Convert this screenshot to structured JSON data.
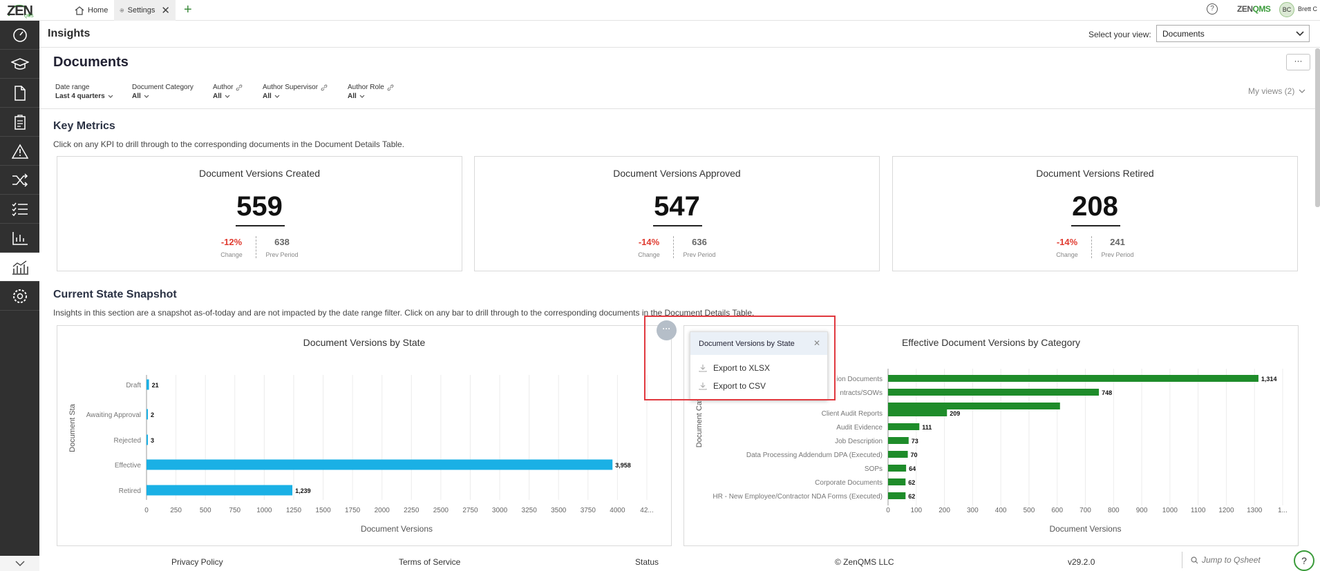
{
  "topbar": {
    "logo": "ZEN",
    "logo_sub": "QMS",
    "tabs": [
      {
        "label": "Home",
        "icon": "home-icon"
      },
      {
        "label": "Settings",
        "icon": "gear-icon",
        "close": "✕"
      }
    ],
    "add_tab": "+",
    "help": "?",
    "brand_zen": "ZEN",
    "brand_qms": "QMS",
    "avatar_initials": "BC",
    "user_name": "Brett C"
  },
  "sidebar": {
    "items": [
      "dashboard-icon",
      "training-icon",
      "document-icon",
      "clipboard-icon",
      "warning-icon",
      "shuffle-icon",
      "checklist-icon",
      "bar-chart-icon",
      "analytics-icon",
      "settings-icon"
    ],
    "active_index": 8
  },
  "header": {
    "title": "Insights",
    "view_label": "Select your view:",
    "view_value": "Documents"
  },
  "page": {
    "title": "Documents",
    "more": "···",
    "filters": [
      {
        "label": "Date range",
        "value": "Last 4 quarters",
        "link": false
      },
      {
        "label": "Document Category",
        "value": "All",
        "link": false
      },
      {
        "label": "Author",
        "value": "All",
        "link": true
      },
      {
        "label": "Author Supervisor",
        "value": "All",
        "link": true
      },
      {
        "label": "Author Role",
        "value": "All",
        "link": true
      }
    ],
    "my_views": "My views (2)"
  },
  "key_metrics": {
    "title": "Key Metrics",
    "subtitle": "Click on any KPI to drill through to the corresponding documents in the Document Details Table.",
    "change_label": "Change",
    "prev_label": "Prev Period",
    "kpis": [
      {
        "title": "Document Versions Created",
        "value": "559",
        "change": "-12%",
        "prev": "638"
      },
      {
        "title": "Document Versions Approved",
        "value": "547",
        "change": "-14%",
        "prev": "636"
      },
      {
        "title": "Document Versions Retired",
        "value": "208",
        "change": "-14%",
        "prev": "241"
      }
    ]
  },
  "snapshot": {
    "title": "Current State Snapshot",
    "subtitle": "Insights in this section are a snapshot as-of-today and are not impacted by the date range filter. Click on any bar to drill through to the corresponding documents in the Document Details Table."
  },
  "colors": {
    "state_bar": "#1ab0e5",
    "category_bar": "#1e8c2a",
    "negative": "#e03c31",
    "highlight": "#e0383e"
  },
  "chart_data": [
    {
      "type": "bar",
      "orientation": "horizontal",
      "title": "Document Versions by State",
      "xlabel": "Document Versions",
      "ylabel": "Document Sta",
      "categories": [
        "Draft",
        "Awaiting Approval",
        "Rejected",
        "Effective",
        "Retired"
      ],
      "values": [
        21,
        2,
        3,
        3958,
        1239
      ],
      "value_labels": [
        "21",
        "2",
        "3",
        "3,958",
        "1,239"
      ],
      "xticks": [
        "0",
        "250",
        "500",
        "750",
        "1000",
        "1250",
        "1500",
        "1750",
        "2000",
        "2250",
        "2500",
        "2750",
        "3000",
        "3250",
        "3500",
        "3750",
        "4000",
        "42..."
      ],
      "xlim": [
        0,
        4250
      ],
      "grid": true
    },
    {
      "type": "bar",
      "orientation": "horizontal",
      "title": "Effective Document Versions by Category",
      "xlabel": "Document Versions",
      "ylabel": "Document Categ",
      "categories": [
        "ion Documents",
        "ntracts/SOWs",
        "",
        "Client Audit Reports",
        "Audit Evidence",
        "Job Description",
        "Data Processing Addendum DPA (Executed)",
        "SOPs",
        "Corporate Documents",
        "HR - New Employee/Contractor NDA Forms (Executed)"
      ],
      "values": [
        1314,
        748,
        610,
        209,
        111,
        73,
        70,
        64,
        62,
        62
      ],
      "value_labels": [
        "1,314",
        "748",
        "",
        "209",
        "111",
        "73",
        "70",
        "64",
        "62",
        "62"
      ],
      "xticks": [
        "0",
        "100",
        "200",
        "300",
        "400",
        "500",
        "600",
        "700",
        "800",
        "900",
        "1000",
        "1100",
        "1200",
        "1300",
        "1..."
      ],
      "xlim": [
        0,
        1400
      ],
      "grid": true
    }
  ],
  "popup": {
    "trigger": "···",
    "title": "Document Versions by State",
    "close": "✕",
    "items": [
      "Export to XLSX",
      "Export to CSV"
    ]
  },
  "footer": {
    "privacy": "Privacy Policy",
    "terms": "Terms of Service",
    "status": "Status",
    "copyright": "© ZenQMS LLC",
    "version": "v29.2.0",
    "jump_placeholder": "Jump to Qsheet",
    "help": "?"
  }
}
